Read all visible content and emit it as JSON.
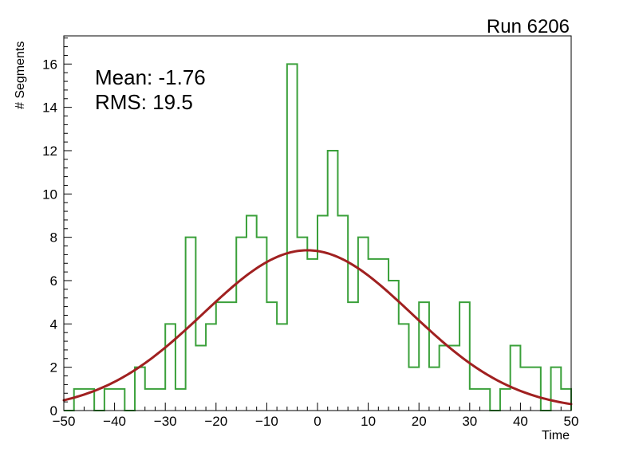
{
  "chart_data": {
    "type": "bar",
    "subtype": "step-histogram-with-gaussian-fit",
    "title": "Run 6206",
    "xlabel": "Time",
    "ylabel": "# Segments",
    "xlim": [
      -50,
      50
    ],
    "ylim": [
      0,
      17.3
    ],
    "grid": false,
    "legend": false,
    "bin_start": -50,
    "bin_width": 2,
    "bin_counts": [
      0,
      1,
      1,
      0,
      1,
      1,
      0,
      2,
      1,
      1,
      4,
      1,
      8,
      3,
      4,
      5,
      5,
      8,
      9,
      8,
      5,
      4,
      16,
      8,
      7,
      9,
      12,
      9,
      5,
      8,
      7,
      7,
      6,
      4,
      2,
      5,
      2,
      3,
      3,
      5,
      1,
      1,
      0,
      1,
      3,
      2,
      2,
      0,
      2,
      1
    ],
    "xticks": [
      -50,
      -40,
      -30,
      -20,
      -10,
      0,
      10,
      20,
      30,
      40,
      50
    ],
    "xtick_labels": [
      "−50",
      "−40",
      "−30",
      "−20",
      "−10",
      "0",
      "10",
      "20",
      "30",
      "40",
      "50"
    ],
    "x_minor_step": 2,
    "yticks": [
      0,
      2,
      4,
      6,
      8,
      10,
      12,
      14,
      16
    ],
    "ytick_labels": [
      "0",
      "2",
      "4",
      "6",
      "8",
      "10",
      "12",
      "14",
      "16"
    ],
    "y_minor_step": 0.4,
    "annotations": [
      "Mean: -1.76",
      "RMS:  19.5"
    ],
    "fit": {
      "shape": "gaussian",
      "amplitude": 7.4,
      "mean": -2.0,
      "sigma": 20.5
    },
    "colors": {
      "histogram": "#3aa03a",
      "fit": "#a02020",
      "frame": "#000000",
      "text": "#000000"
    }
  }
}
